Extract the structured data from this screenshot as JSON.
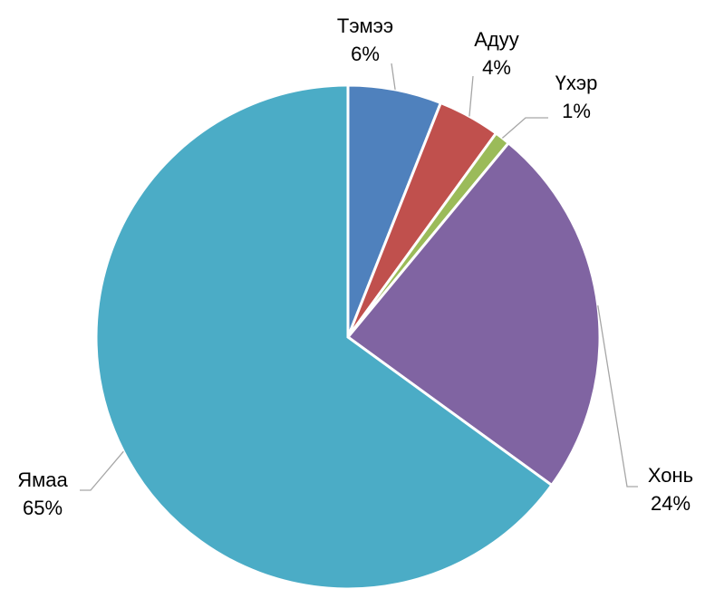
{
  "chart_data": {
    "type": "pie",
    "categories": [
      "Тэмээ",
      "Адуу",
      "Үхэр",
      "Хонь",
      "Ямаа"
    ],
    "values": [
      6,
      4,
      1,
      24,
      65
    ],
    "value_labels": [
      "6%",
      "4%",
      "1%",
      "24%",
      "65%"
    ],
    "colors": [
      "#4f81bd",
      "#c0504d",
      "#9bbb59",
      "#8064a2",
      "#4bacc6"
    ]
  }
}
